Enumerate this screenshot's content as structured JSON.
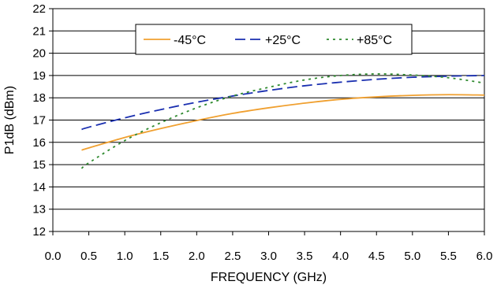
{
  "chart_data": {
    "type": "line",
    "title": "",
    "xlabel": "FREQUENCY  (GHz)",
    "ylabel": "P1dB (dBm)",
    "xlim": [
      0,
      6
    ],
    "ylim": [
      12,
      22
    ],
    "x_ticks": [
      "0.0",
      "0.5",
      "1.0",
      "1.5",
      "2.0",
      "2.5",
      "3.0",
      "3.5",
      "4.0",
      "4.5",
      "5.0",
      "5.5",
      "6.0"
    ],
    "y_ticks": [
      "12",
      "13",
      "14",
      "15",
      "16",
      "17",
      "18",
      "19",
      "20",
      "21",
      "22"
    ],
    "grid": {
      "horizontal": true,
      "vertical": false
    },
    "legend_position": "top-center",
    "series": [
      {
        "name": "-45°C",
        "color": "#f0a030",
        "dash": "solid",
        "x": [
          0.4,
          0.5,
          1.0,
          1.5,
          2.0,
          2.5,
          3.0,
          3.5,
          4.0,
          4.5,
          5.0,
          5.5,
          6.0
        ],
        "y": [
          15.65,
          15.75,
          16.22,
          16.62,
          16.98,
          17.3,
          17.55,
          17.76,
          17.93,
          18.04,
          18.11,
          18.14,
          18.12
        ]
      },
      {
        "name": "+25°C",
        "color": "#1a2fb0",
        "dash": "long-dash",
        "x": [
          0.4,
          0.5,
          1.0,
          1.5,
          2.0,
          2.5,
          3.0,
          3.5,
          4.0,
          4.5,
          5.0,
          5.5,
          6.0
        ],
        "y": [
          16.58,
          16.68,
          17.1,
          17.47,
          17.8,
          18.08,
          18.33,
          18.54,
          18.7,
          18.83,
          18.92,
          18.97,
          19.0
        ]
      },
      {
        "name": "+85°C",
        "color": "#2f8a2f",
        "dash": "dotted",
        "x": [
          0.4,
          0.5,
          1.0,
          1.5,
          2.0,
          2.5,
          3.0,
          3.5,
          4.0,
          4.5,
          5.0,
          5.5,
          6.0
        ],
        "y": [
          14.83,
          15.08,
          16.08,
          16.88,
          17.55,
          18.08,
          18.47,
          18.8,
          19.0,
          19.07,
          19.02,
          18.9,
          18.66
        ]
      }
    ]
  }
}
